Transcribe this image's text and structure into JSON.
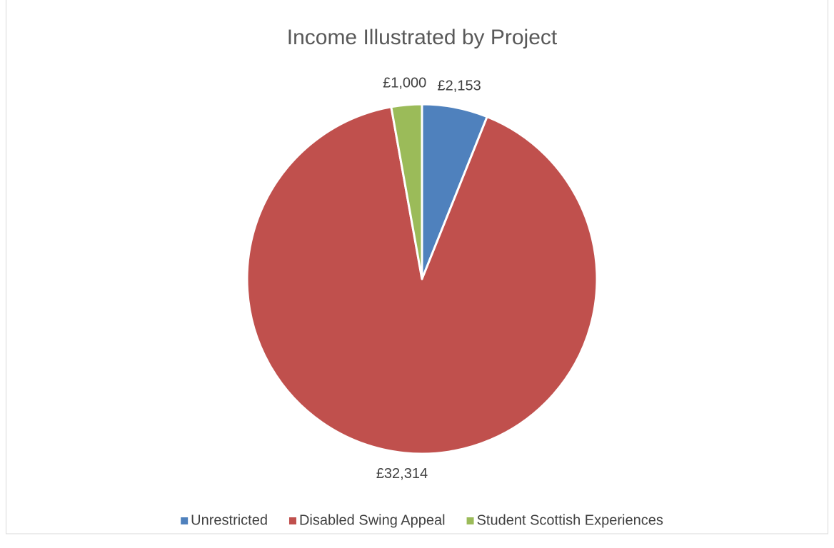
{
  "chart_data": {
    "type": "pie",
    "title": "Income Illustrated by Project",
    "categories": [
      "Unrestricted",
      "Disabled Swing Appeal",
      "Student Scottish Experiences"
    ],
    "values": [
      2153,
      32314,
      1000
    ],
    "value_labels": [
      "£2,153",
      "£32,314",
      "£1,000"
    ],
    "colors": [
      "#4f81bd",
      "#c0504d",
      "#9bbb59"
    ],
    "legend": "bottom"
  }
}
